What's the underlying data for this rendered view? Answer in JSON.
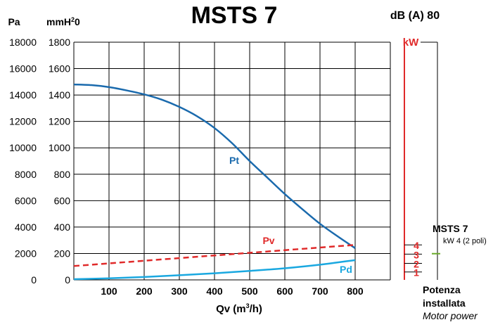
{
  "chart_data": {
    "type": "line",
    "title": "MSTS 7",
    "noise_label": "dB (A) 80",
    "xlabel_main": "Qv (m",
    "xlabel_sup": "3",
    "xlabel_tail": "/h)",
    "y_left_outer_label": "Pa",
    "y_left_inner_label_main": "mmH",
    "y_left_inner_label_sup": "2",
    "y_left_inner_label_tail": "0",
    "y_right_label": "kW",
    "x_ticks": [
      "100",
      "200",
      "300",
      "400",
      "500",
      "600",
      "700",
      "800"
    ],
    "xlim": [
      0,
      900
    ],
    "ylim": [
      0,
      1800
    ],
    "y_ticks_mm": [
      "0",
      "200",
      "400",
      "600",
      "800",
      "1000",
      "1200",
      "1400",
      "1600",
      "1800"
    ],
    "y_ticks_pa": [
      "0",
      "2000",
      "4000",
      "6000",
      "8000",
      "10000",
      "12000",
      "14000",
      "16000",
      "18000"
    ],
    "kw_ticks": [
      {
        "label": "1",
        "mm": 60
      },
      {
        "label": "2",
        "mm": 125
      },
      {
        "label": "3",
        "mm": 195
      },
      {
        "label": "4",
        "mm": 265
      }
    ],
    "grid": true,
    "series": [
      {
        "name": "Pt",
        "color": "#1a6aad",
        "style": "solid",
        "x": [
          0,
          50,
          100,
          150,
          200,
          250,
          300,
          350,
          400,
          450,
          500,
          550,
          600,
          650,
          700,
          750,
          800
        ],
        "y": [
          1480,
          1475,
          1460,
          1435,
          1405,
          1365,
          1310,
          1240,
          1150,
          1035,
          900,
          775,
          650,
          535,
          425,
          330,
          240
        ]
      },
      {
        "name": "Pv",
        "color": "#e02a2a",
        "style": "dashed",
        "x": [
          0,
          800
        ],
        "y": [
          105,
          265
        ]
      },
      {
        "name": "Pd",
        "color": "#1aa8e0",
        "style": "solid",
        "x": [
          0,
          100,
          200,
          300,
          400,
          500,
          600,
          700,
          800
        ],
        "y": [
          5,
          12,
          22,
          35,
          50,
          68,
          88,
          115,
          150
        ]
      }
    ],
    "series_labels": {
      "Pt": "Pt",
      "Pv": "Pv",
      "Pd": "Pd"
    },
    "motor_point": {
      "title": "MSTS 7",
      "subtitle": "kW 4 (2 poli)",
      "mm": 305
    },
    "footer": {
      "line1": "Potenza",
      "line2": "installata",
      "line3": "Motor power"
    },
    "colors": {
      "axis": "#000000",
      "grid": "#000000",
      "kw": "#e02a2a",
      "marker": "#6aaa2a"
    }
  }
}
